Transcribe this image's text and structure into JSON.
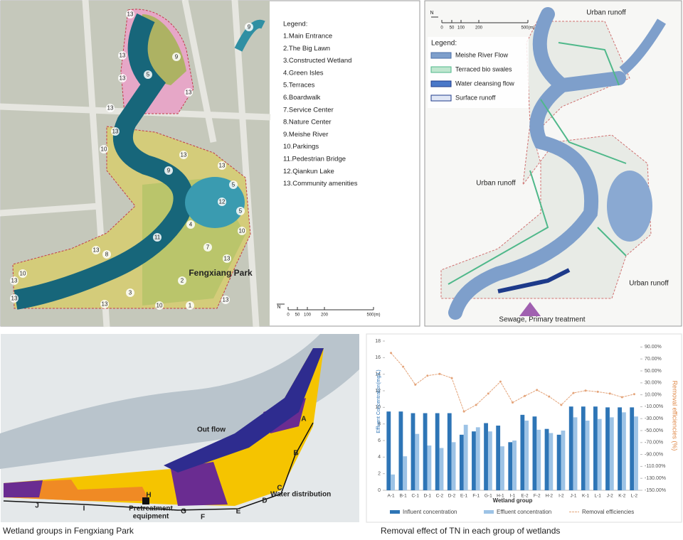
{
  "map_plan": {
    "legend_title": "Legend:",
    "legend": [
      "1.Main Entrance",
      "2.The Big Lawn",
      "3.Constructed Wetland",
      "4.Green Isles",
      "5.Terraces",
      "6.Boardwalk",
      "7.Service Center",
      "8.Nature Center",
      "9.Meishe River",
      "10.Parkings",
      "11.Pedestrian Bridge",
      "12.Qiankun Lake",
      "13.Community amenities"
    ],
    "markers": [
      "13",
      "9",
      "13",
      "13",
      "9",
      "5",
      "13",
      "13",
      "13",
      "10",
      "13",
      "9",
      "13",
      "5",
      "12",
      "5",
      "4",
      "10",
      "11",
      "13",
      "8",
      "13",
      "7",
      "10",
      "13",
      "2",
      "3",
      "13",
      "13",
      "10",
      "1",
      "13"
    ],
    "park_label": "Fengxiang Park",
    "scale": {
      "north": "N",
      "labels": [
        "0",
        "50",
        "100",
        "200",
        "500(m)"
      ]
    }
  },
  "map_water": {
    "scale": {
      "north": "N",
      "labels": [
        "0",
        "50",
        "100",
        "200",
        "500(m)"
      ]
    },
    "legend_title": "Legend:",
    "legend": [
      "Meishe River Flow",
      "Terraced bio swales",
      "Water cleansing flow",
      "Surface runoff"
    ],
    "runoff_labels": [
      "Urban runoff",
      "Urban runoff",
      "Urban runoff"
    ],
    "sewage_label": "Sewage, Primary treatment"
  },
  "map_groups": {
    "group_labels": [
      "A",
      "B",
      "C",
      "D",
      "E",
      "F",
      "G",
      "H",
      "I",
      "J"
    ],
    "out_flow": "Out flow",
    "water_distribution": "Water distribution",
    "pretreatment": [
      "Pretreatment",
      "equipment"
    ],
    "caption": "Wetland groups in Fengxiang Park"
  },
  "chart_data": {
    "type": "bar",
    "title": "Removal effect of TN in each group of wetlands",
    "x_label": "Wetland group",
    "y_label": "Effluent Concentration(mg/L)",
    "y2_label": "Removal efficiencies (%)",
    "categories": [
      "A-1",
      "B-1",
      "C-1",
      "D-1",
      "C-2",
      "D-2",
      "E-1",
      "F-1",
      "G-1",
      "H-1",
      "I-1",
      "E-2",
      "F-2",
      "H-2",
      "I-2",
      "J-1",
      "K-1",
      "L-1",
      "J-2",
      "K-2",
      "L-2"
    ],
    "series": [
      {
        "name": "Influent concentration",
        "color": "#2e75b6",
        "values": [
          9.5,
          9.5,
          9.3,
          9.3,
          9.3,
          9.3,
          6.7,
          7.1,
          8.1,
          7.8,
          5.8,
          9.1,
          8.9,
          7.4,
          6.7,
          10.1,
          10.1,
          10.1,
          10.0,
          10.0,
          10.0
        ]
      },
      {
        "name": "Effluent concentration",
        "color": "#9dc3e6",
        "values": [
          1.9,
          4.1,
          6.8,
          5.4,
          5.1,
          5.8,
          7.9,
          7.6,
          7.1,
          5.3,
          6.0,
          8.4,
          7.3,
          6.9,
          7.2,
          8.8,
          8.4,
          8.6,
          8.8,
          9.4,
          8.9
        ]
      },
      {
        "name": "Removal efficiencies",
        "color": "#e4a47a",
        "type": "line",
        "axis": "y2",
        "values": [
          80,
          57,
          27,
          42,
          45,
          38,
          -18,
          -7,
          12,
          32,
          -3,
          8,
          18,
          7,
          -7,
          13,
          17,
          15,
          12,
          6,
          11
        ]
      }
    ],
    "ylim": [
      0,
      18
    ],
    "yticks": [
      0,
      2,
      4,
      6,
      8,
      10,
      12,
      14,
      16,
      18
    ],
    "y2lim": [
      -150,
      100
    ],
    "y2ticks": [
      {
        "value": 90,
        "label": "90.00%"
      },
      {
        "value": 70,
        "label": "70.00%"
      },
      {
        "value": 50,
        "label": "50.00%"
      },
      {
        "value": 30,
        "label": "30.00%"
      },
      {
        "value": 10,
        "label": "10.00%"
      },
      {
        "value": -10,
        "label": "-10.00%"
      },
      {
        "value": -30,
        "label": "-30.00%"
      },
      {
        "value": -50,
        "label": "-50.00%"
      },
      {
        "value": -70,
        "label": "-70.00%"
      },
      {
        "value": -90,
        "label": "-90.00%"
      },
      {
        "value": -110,
        "label": "-110.00%"
      },
      {
        "value": -130,
        "label": "-130.00%"
      },
      {
        "value": -150,
        "label": "-150.00%"
      }
    ]
  }
}
